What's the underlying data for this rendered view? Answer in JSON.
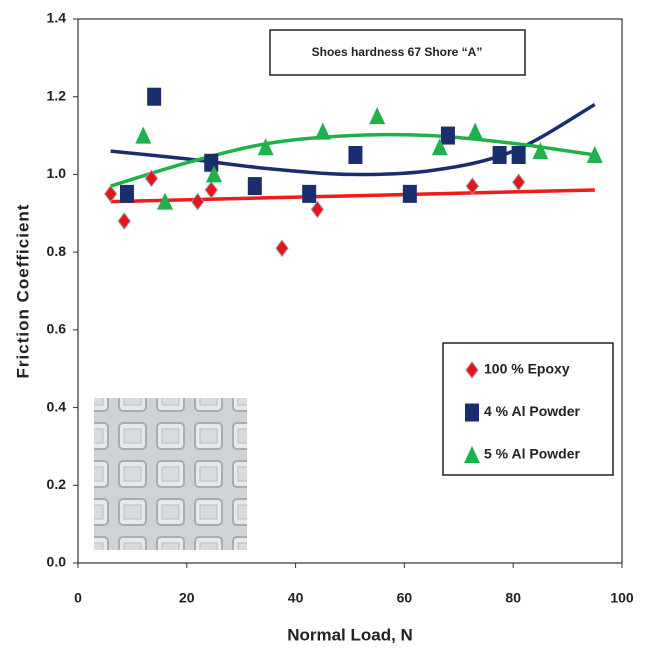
{
  "chart_data": {
    "type": "scatter",
    "xlabel": "Normal Load, N",
    "ylabel": "Friction Coefficient",
    "annotation": "Shoes hardness 67 Shore “A”",
    "xlim": [
      0,
      100
    ],
    "xticks": [
      0,
      20,
      40,
      60,
      80,
      100
    ],
    "ylim": [
      0,
      1.4
    ],
    "yticks": [
      {
        "value": 0,
        "label": "0.0"
      },
      0.2,
      0.4,
      0.6,
      0.8,
      {
        "value": 1,
        "label": "1.0"
      },
      1.2,
      1.4
    ],
    "legend": "lower right",
    "series": [
      {
        "name": "100 % Epoxy",
        "color": "#e8141c",
        "marker": "diamond",
        "x": [
          6,
          8.5,
          13.5,
          22,
          24.5,
          37.5,
          44,
          72.5,
          81
        ],
        "values": [
          0.95,
          0.88,
          0.99,
          0.93,
          0.96,
          0.81,
          0.91,
          0.97,
          0.98
        ]
      },
      {
        "name": "4 % Al Powder",
        "color": "#1a2e6e",
        "marker": "square",
        "x": [
          9,
          14,
          24.5,
          32.5,
          42.5,
          51,
          61,
          68,
          77.5,
          81
        ],
        "values": [
          0.95,
          1.2,
          1.03,
          0.97,
          0.95,
          1.05,
          0.95,
          1.1,
          1.05,
          1.05
        ]
      },
      {
        "name": "5 % Al Powder",
        "color": "#22b04a",
        "marker": "triangle",
        "x": [
          12,
          16,
          25,
          34.5,
          45,
          55,
          66.5,
          73,
          85,
          95
        ],
        "values": [
          1.1,
          0.93,
          1.0,
          1.07,
          1.11,
          1.15,
          1.07,
          1.11,
          1.06,
          1.05
        ]
      }
    ],
    "trends": [
      {
        "color": "#ee1c1c",
        "x": [
          6,
          95
        ],
        "values": [
          0.93,
          0.96
        ]
      },
      {
        "color": "#1a2e6e",
        "x": [
          6,
          20,
          35,
          50,
          65,
          80,
          95
        ],
        "values": [
          1.06,
          1.04,
          1.015,
          1.0,
          1.01,
          1.06,
          1.18
        ]
      },
      {
        "color": "#22b04a",
        "x": [
          6,
          20,
          35,
          50,
          65,
          80,
          95
        ],
        "values": [
          0.97,
          1.03,
          1.08,
          1.1,
          1.1,
          1.08,
          1.05
        ]
      }
    ]
  }
}
